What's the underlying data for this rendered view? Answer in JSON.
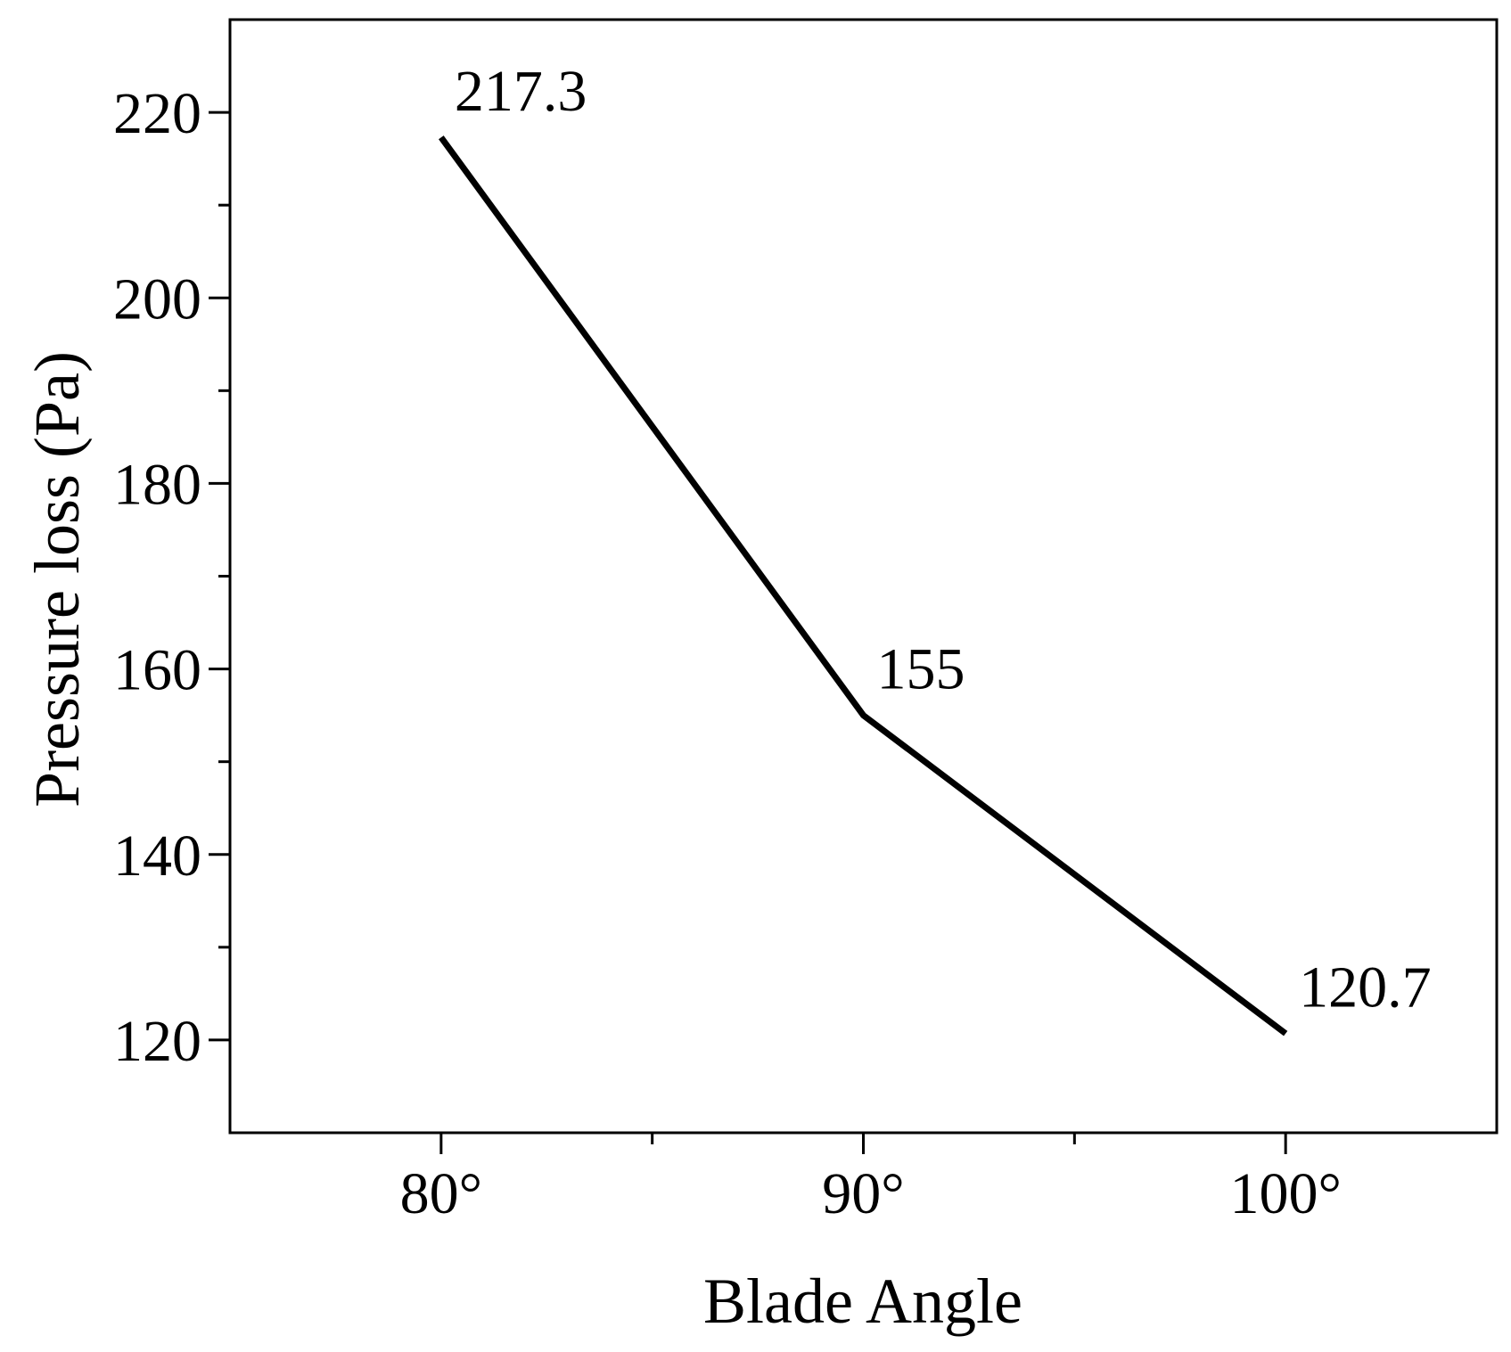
{
  "chart_data": {
    "type": "line",
    "x_label": "Blade Angle",
    "y_label": "Pressure loss (Pa)",
    "x": [
      80,
      90,
      100
    ],
    "series": [
      {
        "color": "#000000",
        "values": [
          217.3,
          155,
          120.7
        ]
      }
    ],
    "xlim": [
      75,
      105
    ],
    "xticks": [
      {
        "value": 80,
        "label": "80°"
      },
      {
        "value": 90,
        "label": "90°"
      },
      {
        "value": 100,
        "label": "100°"
      }
    ],
    "xminorticks": [
      85,
      95
    ],
    "ylim": [
      110,
      230
    ],
    "yticks": [
      120,
      140,
      160,
      180,
      200,
      220
    ],
    "yminorticks": [
      130,
      150,
      170,
      190,
      210
    ],
    "grid": false
  }
}
